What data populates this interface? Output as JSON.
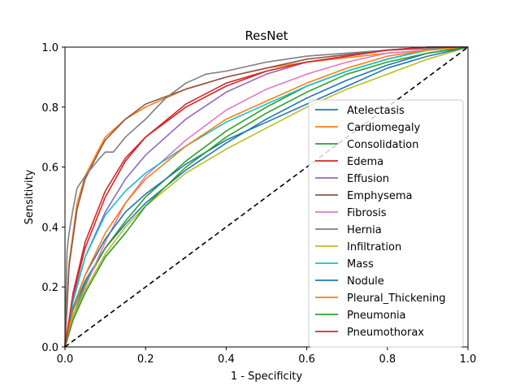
{
  "chart_data": {
    "type": "line",
    "title": "ResNet",
    "xlabel": "1 - Specificity",
    "ylabel": "Sensitivity",
    "xlim": [
      0.0,
      1.0
    ],
    "ylim": [
      0.0,
      1.0
    ],
    "xticks": [
      "0.0",
      "0.2",
      "0.4",
      "0.6",
      "0.8",
      "1.0"
    ],
    "yticks": [
      "0.0",
      "0.2",
      "0.4",
      "0.6",
      "0.8",
      "1.0"
    ],
    "grid": false,
    "legend_position": "center-right",
    "diagonal": {
      "x": [
        0,
        1
      ],
      "y": [
        0,
        1
      ],
      "color": "#000000",
      "style": "dashed"
    },
    "series": [
      {
        "name": "Atelectasis",
        "color": "#1f77b4",
        "x": [
          0,
          0.02,
          0.05,
          0.1,
          0.15,
          0.2,
          0.3,
          0.4,
          0.5,
          0.6,
          0.7,
          0.8,
          0.9,
          1.0
        ],
        "y": [
          0,
          0.12,
          0.22,
          0.33,
          0.41,
          0.48,
          0.59,
          0.68,
          0.76,
          0.83,
          0.89,
          0.94,
          0.98,
          1.0
        ]
      },
      {
        "name": "Cardiomegaly",
        "color": "#ff7f0e",
        "x": [
          0,
          0.01,
          0.03,
          0.05,
          0.08,
          0.1,
          0.15,
          0.2,
          0.3,
          0.4,
          0.5,
          0.6,
          0.8,
          1.0
        ],
        "y": [
          0,
          0.28,
          0.48,
          0.57,
          0.65,
          0.7,
          0.76,
          0.8,
          0.86,
          0.9,
          0.93,
          0.95,
          0.98,
          1.0
        ]
      },
      {
        "name": "Consolidation",
        "color": "#2ca02c",
        "x": [
          0,
          0.02,
          0.05,
          0.1,
          0.15,
          0.2,
          0.3,
          0.4,
          0.5,
          0.6,
          0.7,
          0.8,
          0.9,
          1.0
        ],
        "y": [
          0,
          0.1,
          0.21,
          0.33,
          0.42,
          0.5,
          0.62,
          0.72,
          0.8,
          0.87,
          0.92,
          0.96,
          0.99,
          1.0
        ]
      },
      {
        "name": "Edema",
        "color": "#d62728",
        "x": [
          0,
          0.02,
          0.05,
          0.1,
          0.15,
          0.2,
          0.3,
          0.4,
          0.5,
          0.6,
          0.7,
          0.8,
          0.9,
          1.0
        ],
        "y": [
          0,
          0.17,
          0.33,
          0.5,
          0.62,
          0.7,
          0.81,
          0.88,
          0.92,
          0.95,
          0.97,
          0.99,
          1.0,
          1.0
        ]
      },
      {
        "name": "Effusion",
        "color": "#9467bd",
        "x": [
          0,
          0.02,
          0.05,
          0.1,
          0.15,
          0.2,
          0.3,
          0.4,
          0.5,
          0.6,
          0.7,
          0.8,
          0.9,
          1.0
        ],
        "y": [
          0,
          0.16,
          0.3,
          0.45,
          0.56,
          0.64,
          0.76,
          0.85,
          0.91,
          0.95,
          0.97,
          0.99,
          1.0,
          1.0
        ]
      },
      {
        "name": "Emphysema",
        "color": "#8c564b",
        "x": [
          0,
          0.01,
          0.03,
          0.05,
          0.08,
          0.1,
          0.15,
          0.2,
          0.3,
          0.4,
          0.5,
          0.6,
          0.8,
          1.0
        ],
        "y": [
          0,
          0.27,
          0.46,
          0.56,
          0.64,
          0.69,
          0.76,
          0.81,
          0.86,
          0.9,
          0.93,
          0.96,
          0.99,
          1.0
        ]
      },
      {
        "name": "Fibrosis",
        "color": "#e377c2",
        "x": [
          0,
          0.02,
          0.05,
          0.1,
          0.15,
          0.2,
          0.3,
          0.4,
          0.5,
          0.6,
          0.7,
          0.8,
          0.9,
          1.0
        ],
        "y": [
          0,
          0.09,
          0.2,
          0.35,
          0.48,
          0.57,
          0.69,
          0.79,
          0.86,
          0.91,
          0.95,
          0.98,
          0.99,
          1.0
        ]
      },
      {
        "name": "Hernia",
        "color": "#7f7f7f",
        "x": [
          0,
          0.005,
          0.01,
          0.02,
          0.03,
          0.05,
          0.08,
          0.1,
          0.12,
          0.15,
          0.2,
          0.25,
          0.3,
          0.35,
          0.4,
          0.5,
          0.6,
          0.8,
          1.0
        ],
        "y": [
          0,
          0.32,
          0.38,
          0.46,
          0.53,
          0.57,
          0.62,
          0.65,
          0.65,
          0.7,
          0.76,
          0.83,
          0.88,
          0.91,
          0.92,
          0.95,
          0.97,
          0.99,
          1.0
        ]
      },
      {
        "name": "Infiltration",
        "color": "#bcbd22",
        "x": [
          0,
          0.02,
          0.05,
          0.1,
          0.15,
          0.2,
          0.3,
          0.4,
          0.5,
          0.6,
          0.7,
          0.8,
          0.9,
          1.0
        ],
        "y": [
          0,
          0.1,
          0.19,
          0.31,
          0.4,
          0.47,
          0.58,
          0.66,
          0.73,
          0.8,
          0.86,
          0.91,
          0.96,
          1.0
        ]
      },
      {
        "name": "Mass",
        "color": "#17becf",
        "x": [
          0,
          0.02,
          0.05,
          0.1,
          0.15,
          0.2,
          0.3,
          0.4,
          0.5,
          0.6,
          0.7,
          0.8,
          0.9,
          1.0
        ],
        "y": [
          0,
          0.15,
          0.3,
          0.44,
          0.52,
          0.58,
          0.67,
          0.75,
          0.81,
          0.87,
          0.92,
          0.96,
          0.99,
          1.0
        ]
      },
      {
        "name": "Nodule",
        "color": "#1f77b4",
        "x": [
          0,
          0.02,
          0.05,
          0.1,
          0.15,
          0.2,
          0.3,
          0.4,
          0.5,
          0.6,
          0.7,
          0.8,
          0.9,
          1.0
        ],
        "y": [
          0,
          0.13,
          0.24,
          0.36,
          0.45,
          0.51,
          0.61,
          0.69,
          0.75,
          0.81,
          0.87,
          0.93,
          0.97,
          1.0
        ]
      },
      {
        "name": "Pleural_Thickening",
        "color": "#ff7f0e",
        "x": [
          0,
          0.02,
          0.05,
          0.1,
          0.15,
          0.2,
          0.3,
          0.4,
          0.5,
          0.6,
          0.7,
          0.8,
          0.9,
          1.0
        ],
        "y": [
          0,
          0.12,
          0.24,
          0.38,
          0.48,
          0.56,
          0.67,
          0.76,
          0.82,
          0.88,
          0.93,
          0.97,
          0.99,
          1.0
        ]
      },
      {
        "name": "Pneumonia",
        "color": "#2ca02c",
        "x": [
          0,
          0.02,
          0.05,
          0.1,
          0.15,
          0.2,
          0.3,
          0.4,
          0.5,
          0.6,
          0.7,
          0.8,
          0.9,
          1.0
        ],
        "y": [
          0,
          0.09,
          0.18,
          0.3,
          0.38,
          0.47,
          0.6,
          0.7,
          0.78,
          0.85,
          0.91,
          0.95,
          0.98,
          1.0
        ]
      },
      {
        "name": "Pneumothorax",
        "color": "#d62728",
        "x": [
          0,
          0.02,
          0.05,
          0.1,
          0.15,
          0.2,
          0.3,
          0.4,
          0.5,
          0.6,
          0.7,
          0.8,
          0.9,
          1.0
        ],
        "y": [
          0,
          0.18,
          0.35,
          0.52,
          0.63,
          0.7,
          0.8,
          0.87,
          0.92,
          0.95,
          0.97,
          0.99,
          1.0,
          1.0
        ]
      }
    ]
  }
}
